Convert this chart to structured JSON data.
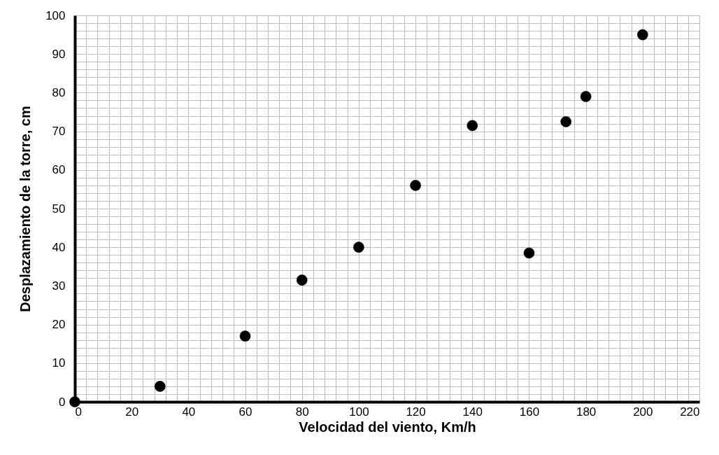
{
  "chart_data": {
    "type": "scatter",
    "xlabel": "Velocidad del viento, Km/h",
    "ylabel": "Desplazamiento de la torre, cm",
    "x": [
      0,
      30,
      60,
      80,
      100,
      120,
      140,
      160,
      173,
      180,
      200
    ],
    "values": [
      0,
      4,
      17,
      31.5,
      40,
      56,
      71.5,
      38.5,
      72.5,
      79,
      95
    ],
    "color": "#000000",
    "marker": "circle",
    "grid": true,
    "xlim": [
      0,
      220
    ],
    "xticks": [
      0,
      {
        "value": 4,
        "label": null
      },
      {
        "value": 8,
        "label": null
      },
      {
        "value": 12,
        "label": null
      },
      {
        "value": 16,
        "label": null
      },
      20,
      {
        "value": 24,
        "label": null
      },
      {
        "value": 28,
        "label": null
      },
      {
        "value": 32,
        "label": null
      },
      {
        "value": 36,
        "label": null
      },
      40,
      {
        "value": 44,
        "label": null
      },
      {
        "value": 48,
        "label": null
      },
      {
        "value": 52,
        "label": null
      },
      {
        "value": 56,
        "label": null
      },
      60,
      {
        "value": 64,
        "label": null
      },
      {
        "value": 68,
        "label": null
      },
      {
        "value": 72,
        "label": null
      },
      {
        "value": 76,
        "label": null
      },
      80,
      {
        "value": 84,
        "label": null
      },
      {
        "value": 88,
        "label": null
      },
      {
        "value": 92,
        "label": null
      },
      {
        "value": 96,
        "label": null
      },
      100,
      {
        "value": 104,
        "label": null
      },
      {
        "value": 108,
        "label": null
      },
      {
        "value": 112,
        "label": null
      },
      {
        "value": 116,
        "label": null
      },
      120,
      {
        "value": 124,
        "label": null
      },
      {
        "value": 128,
        "label": null
      },
      {
        "value": 132,
        "label": null
      },
      {
        "value": 136,
        "label": null
      },
      140,
      {
        "value": 144,
        "label": null
      },
      {
        "value": 148,
        "label": null
      },
      {
        "value": 152,
        "label": null
      },
      {
        "value": 156,
        "label": null
      },
      160,
      {
        "value": 164,
        "label": null
      },
      {
        "value": 168,
        "label": null
      },
      {
        "value": 172,
        "label": null
      },
      {
        "value": 176,
        "label": null
      },
      180,
      {
        "value": 184,
        "label": null
      },
      {
        "value": 188,
        "label": null
      },
      {
        "value": 192,
        "label": null
      },
      {
        "value": 196,
        "label": null
      },
      200,
      {
        "value": 204,
        "label": null
      },
      {
        "value": 208,
        "label": null
      },
      {
        "value": 212,
        "label": null
      },
      {
        "value": 216,
        "label": null
      },
      220
    ],
    "ylim": [
      0,
      100
    ],
    "yticks": [
      0,
      {
        "value": 2,
        "label": null
      },
      {
        "value": 4,
        "label": null
      },
      {
        "value": 6,
        "label": null
      },
      {
        "value": 8,
        "label": null
      },
      10,
      {
        "value": 12,
        "label": null
      },
      {
        "value": 14,
        "label": null
      },
      {
        "value": 16,
        "label": null
      },
      {
        "value": 18,
        "label": null
      },
      20,
      {
        "value": 22,
        "label": null
      },
      {
        "value": 24,
        "label": null
      },
      {
        "value": 26,
        "label": null
      },
      {
        "value": 28,
        "label": null
      },
      30,
      {
        "value": 32,
        "label": null
      },
      {
        "value": 34,
        "label": null
      },
      {
        "value": 36,
        "label": null
      },
      {
        "value": 38,
        "label": null
      },
      40,
      {
        "value": 42,
        "label": null
      },
      {
        "value": 44,
        "label": null
      },
      {
        "value": 46,
        "label": null
      },
      {
        "value": 48,
        "label": null
      },
      50,
      {
        "value": 52,
        "label": null
      },
      {
        "value": 54,
        "label": null
      },
      {
        "value": 56,
        "label": null
      },
      {
        "value": 58,
        "label": null
      },
      60,
      {
        "value": 62,
        "label": null
      },
      {
        "value": 64,
        "label": null
      },
      {
        "value": 66,
        "label": null
      },
      {
        "value": 68,
        "label": null
      },
      70,
      {
        "value": 72,
        "label": null
      },
      {
        "value": 74,
        "label": null
      },
      {
        "value": 76,
        "label": null
      },
      {
        "value": 78,
        "label": null
      },
      80,
      {
        "value": 82,
        "label": null
      },
      {
        "value": 84,
        "label": null
      },
      {
        "value": 86,
        "label": null
      },
      {
        "value": 88,
        "label": null
      },
      90,
      {
        "value": 92,
        "label": null
      },
      {
        "value": 94,
        "label": null
      },
      {
        "value": 96,
        "label": null
      },
      {
        "value": 98,
        "label": null
      },
      100
    ]
  }
}
